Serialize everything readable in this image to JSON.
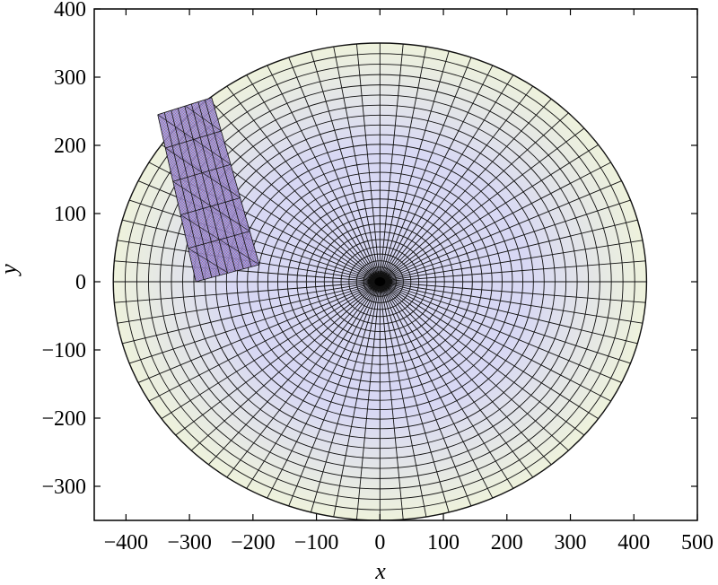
{
  "chart_data": {
    "type": "mesh",
    "title": "",
    "xlabel": "x",
    "ylabel": "y",
    "xlim": [
      -450,
      500
    ],
    "ylim": [
      -350,
      400
    ],
    "x_ticks": [
      -400,
      -300,
      -200,
      -100,
      0,
      100,
      200,
      300,
      400,
      500
    ],
    "y_ticks": [
      -300,
      -200,
      -100,
      0,
      100,
      200,
      300,
      400
    ],
    "x_tick_labels": [
      "−400",
      "−300",
      "−200",
      "−100",
      "0",
      "100",
      "200",
      "300",
      "400",
      "500"
    ],
    "y_tick_labels": [
      "−300",
      "−200",
      "−100",
      "0",
      "100",
      "200",
      "300",
      "400"
    ],
    "grid": false,
    "disc_mesh": {
      "center": [
        0,
        0
      ],
      "radius_x": 420,
      "radius_y": 350,
      "radial_lines": 72,
      "rings": 28,
      "fill_inner": "#d8d8f4",
      "fill_outer": "#eef2dc",
      "line_color": "#111111"
    },
    "patch_mesh": {
      "corners": [
        [
          -350,
          245
        ],
        [
          -265,
          270
        ],
        [
          -190,
          25
        ],
        [
          -290,
          0
        ]
      ],
      "divisions_u": 8,
      "divisions_v": 5,
      "fill": "#9a9ad8",
      "hatch_color_1": "#d04040",
      "hatch_color_2": "#4040d0",
      "line_color": "#111111"
    }
  }
}
